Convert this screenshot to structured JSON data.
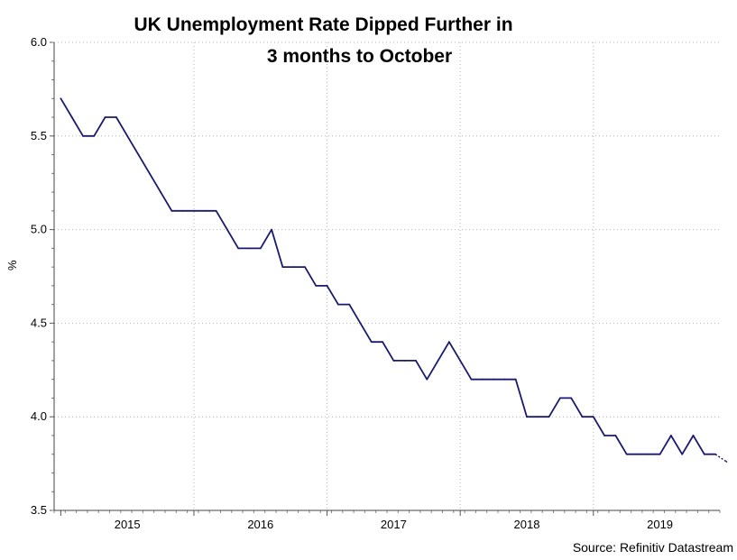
{
  "chart_data": {
    "type": "line",
    "title_line1": "UK Unemployment Rate Dipped Further in",
    "title_line2": "3 months to October",
    "xlabel": "",
    "ylabel": "%",
    "ylim": [
      3.5,
      6.0
    ],
    "xlim": [
      2014.45,
      2019.45
    ],
    "yticks": [
      "6.0",
      "5.5",
      "5.0",
      "4.5",
      "4.0",
      "3.5"
    ],
    "xtick_labels": [
      "2015",
      "2016",
      "2017",
      "2018",
      "2019"
    ],
    "grid": "dotted",
    "source": "Source: Refinitiv Datastream",
    "series": [
      {
        "name": "UK Unemployment Rate",
        "color": "#1a1a6e",
        "values": [
          5.7,
          5.6,
          5.5,
          5.5,
          5.6,
          5.6,
          5.5,
          5.4,
          5.3,
          5.2,
          5.1,
          5.1,
          5.1,
          5.1,
          5.1,
          5.0,
          4.9,
          4.9,
          4.9,
          5.0,
          4.8,
          4.8,
          4.8,
          4.7,
          4.7,
          4.6,
          4.6,
          4.5,
          4.4,
          4.4,
          4.3,
          4.3,
          4.3,
          4.2,
          4.3,
          4.4,
          4.3,
          4.2,
          4.2,
          4.2,
          4.2,
          4.2,
          4.0,
          4.0,
          4.0,
          4.1,
          4.1,
          4.0,
          4.0,
          3.9,
          3.9,
          3.8,
          3.8,
          3.8,
          3.8,
          3.9,
          3.8,
          3.9,
          3.8,
          3.8,
          3.76
        ]
      }
    ]
  }
}
